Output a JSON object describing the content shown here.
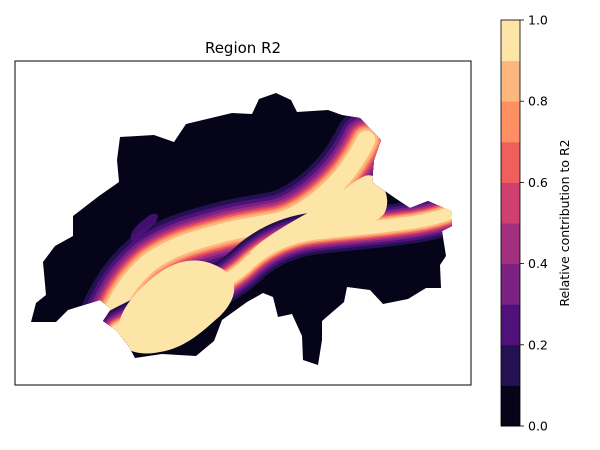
{
  "title": "Region R2",
  "colorbar": {
    "label": "Relative contribution to R2",
    "ticks": [
      "0.0",
      "0.2",
      "0.4",
      "0.6",
      "0.8",
      "1.0"
    ],
    "levels": [
      {
        "from": 0.0,
        "to": 0.1,
        "color": "#050418"
      },
      {
        "from": 0.1,
        "to": 0.2,
        "color": "#231151"
      },
      {
        "from": 0.2,
        "to": 0.3,
        "color": "#4f127b"
      },
      {
        "from": 0.3,
        "to": 0.4,
        "color": "#7a2182"
      },
      {
        "from": 0.4,
        "to": 0.5,
        "color": "#a3307e"
      },
      {
        "from": 0.5,
        "to": 0.6,
        "color": "#cf4070"
      },
      {
        "from": 0.6,
        "to": 0.7,
        "color": "#ef605d"
      },
      {
        "from": 0.7,
        "to": 0.8,
        "color": "#fd8f62"
      },
      {
        "from": 0.8,
        "to": 0.9,
        "color": "#feb67f"
      },
      {
        "from": 0.9,
        "to": 1.0,
        "color": "#fde5a7"
      }
    ]
  },
  "map": {
    "colormap": "magma",
    "value_range": [
      0.0,
      1.0
    ]
  }
}
